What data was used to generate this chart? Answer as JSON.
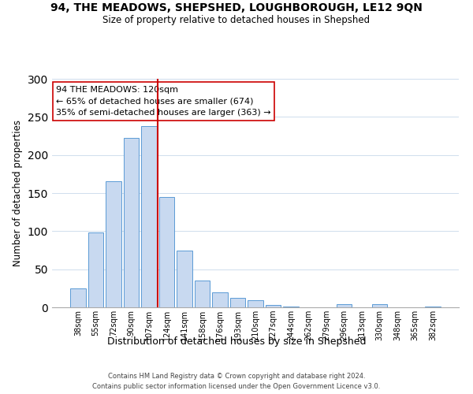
{
  "title": "94, THE MEADOWS, SHEPSHED, LOUGHBOROUGH, LE12 9QN",
  "subtitle": "Size of property relative to detached houses in Shepshed",
  "xlabel": "Distribution of detached houses by size in Shepshed",
  "ylabel": "Number of detached properties",
  "bar_labels": [
    "38sqm",
    "55sqm",
    "72sqm",
    "90sqm",
    "107sqm",
    "124sqm",
    "141sqm",
    "158sqm",
    "176sqm",
    "193sqm",
    "210sqm",
    "227sqm",
    "244sqm",
    "262sqm",
    "279sqm",
    "296sqm",
    "313sqm",
    "330sqm",
    "348sqm",
    "365sqm",
    "382sqm"
  ],
  "bar_values": [
    25,
    98,
    166,
    222,
    238,
    145,
    75,
    35,
    20,
    12,
    9,
    3,
    1,
    0,
    0,
    4,
    0,
    4,
    0,
    0,
    1
  ],
  "bar_color": "#c8d9f0",
  "bar_edge_color": "#5b9bd5",
  "vline_color": "#cc0000",
  "ylim": [
    0,
    300
  ],
  "yticks": [
    0,
    50,
    100,
    150,
    200,
    250,
    300
  ],
  "annotation_text": "94 THE MEADOWS: 120sqm\n← 65% of detached houses are smaller (674)\n35% of semi-detached houses are larger (363) →",
  "annotation_box_color": "#ffffff",
  "annotation_box_edge": "#cc0000",
  "footer_line1": "Contains HM Land Registry data © Crown copyright and database right 2024.",
  "footer_line2": "Contains public sector information licensed under the Open Government Licence v3.0."
}
